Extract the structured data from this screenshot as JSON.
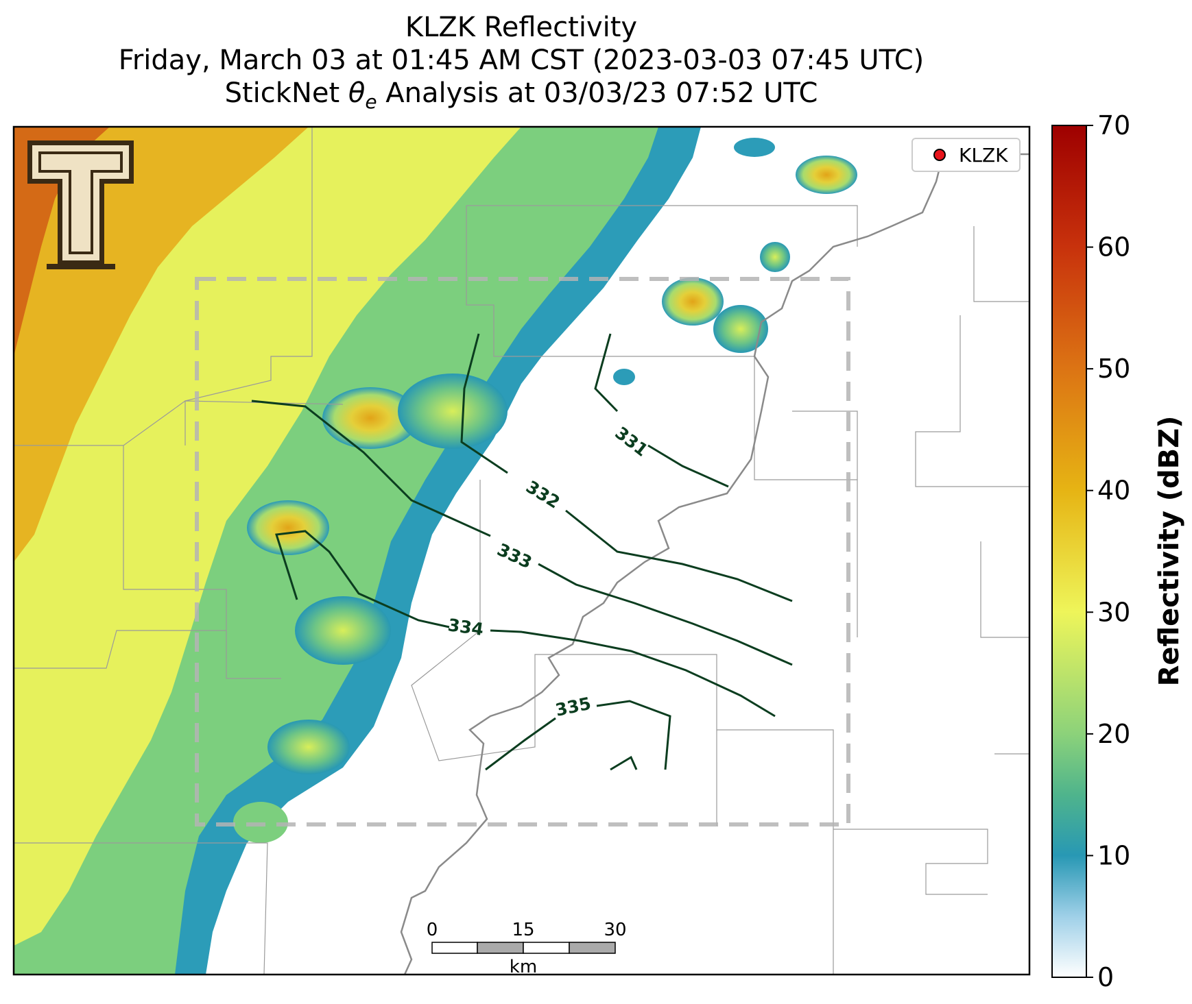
{
  "title": {
    "line1": "KLZK Reflectivity",
    "line2": "Friday, March 03 at 01:45 AM CST (2023-03-03 07:45 UTC)",
    "line3_pre": "StickNet ",
    "line3_theta": "θ",
    "line3_sub": "e",
    "line3_post": " Analysis at 03/03/23 07:52 UTC"
  },
  "legend": {
    "label": "KLZK",
    "marker_color": "#e8141c"
  },
  "colorbar": {
    "label": "Reflectivity (dBZ)",
    "min": 0,
    "max": 70,
    "ticks": [
      "0",
      "10",
      "20",
      "30",
      "40",
      "50",
      "60",
      "70"
    ],
    "stops": [
      {
        "v": 0,
        "c": "#ffffff"
      },
      {
        "v": 5,
        "c": "#9fd0e8"
      },
      {
        "v": 10,
        "c": "#2898b4"
      },
      {
        "v": 15,
        "c": "#4fb48c"
      },
      {
        "v": 20,
        "c": "#8cd27a"
      },
      {
        "v": 30,
        "c": "#eef55a"
      },
      {
        "v": 40,
        "c": "#e6b414"
      },
      {
        "v": 50,
        "c": "#dc7414"
      },
      {
        "v": 60,
        "c": "#c8320c"
      },
      {
        "v": 70,
        "c": "#9e0000"
      }
    ]
  },
  "contours": {
    "color": "#0b3d1f",
    "labels": [
      "331",
      "332",
      "333",
      "334",
      "335"
    ]
  },
  "scalebar": {
    "ticks": [
      "0",
      "15",
      "30"
    ],
    "unit": "km"
  },
  "logo": {
    "name": "texas-tech-double-t-logo",
    "letter": "T"
  },
  "colors": {
    "state_border": "#888888",
    "county_line": "#9a9a9a",
    "domain_box": "#b4b4b4"
  }
}
